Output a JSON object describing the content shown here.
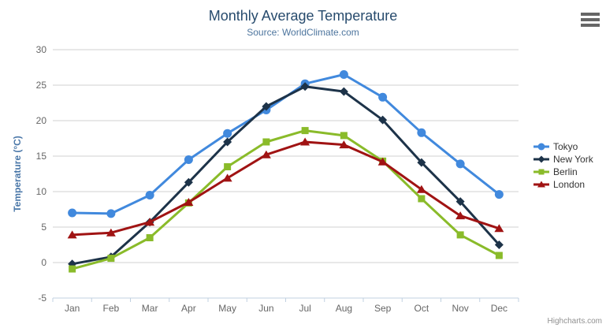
{
  "header": {
    "title": "Monthly Average Temperature",
    "subtitle": "Source: WorldClimate.com"
  },
  "context_menu": {
    "icon": "hamburger-icon"
  },
  "credits": {
    "label": "Highcharts.com"
  },
  "axes": {
    "y_title": "Temperature (°C)",
    "y_ticks": [
      -5,
      0,
      5,
      10,
      15,
      20,
      25,
      30
    ],
    "x_categories": [
      "Jan",
      "Feb",
      "Mar",
      "Apr",
      "May",
      "Jun",
      "Jul",
      "Aug",
      "Sep",
      "Oct",
      "Nov",
      "Dec"
    ]
  },
  "colors": {
    "title": "#274b6d",
    "subtitle": "#4d759e",
    "axis_title": "#4a77a8",
    "tick_label": "#666666",
    "grid": "#d0d0d0",
    "axis_line": "#c0d0e0",
    "legend_text": "#333333",
    "credits": "#909090",
    "background": "#ffffff"
  },
  "chart_data": {
    "type": "line",
    "title": "Monthly Average Temperature",
    "subtitle": "Source: WorldClimate.com",
    "categories": [
      "Jan",
      "Feb",
      "Mar",
      "Apr",
      "May",
      "Jun",
      "Jul",
      "Aug",
      "Sep",
      "Oct",
      "Nov",
      "Dec"
    ],
    "series": [
      {
        "name": "Tokyo",
        "color": "#4189dd",
        "marker": "circle",
        "values": [
          7.0,
          6.9,
          9.5,
          14.5,
          18.2,
          21.5,
          25.2,
          26.5,
          23.3,
          18.3,
          13.9,
          9.6
        ]
      },
      {
        "name": "New York",
        "color": "#1d3349",
        "marker": "diamond",
        "values": [
          -0.2,
          0.8,
          5.7,
          11.3,
          17.0,
          22.0,
          24.8,
          24.1,
          20.1,
          14.1,
          8.6,
          2.5
        ]
      },
      {
        "name": "Berlin",
        "color": "#8abb2a",
        "marker": "square",
        "values": [
          -0.9,
          0.6,
          3.5,
          8.4,
          13.5,
          17.0,
          18.6,
          17.9,
          14.3,
          9.0,
          3.9,
          1.0
        ]
      },
      {
        "name": "London",
        "color": "#a01313",
        "marker": "triangle",
        "values": [
          3.9,
          4.2,
          5.7,
          8.5,
          11.9,
          15.2,
          17.0,
          16.6,
          14.2,
          10.3,
          6.6,
          4.8
        ]
      }
    ],
    "xlabel": "",
    "ylabel": "Temperature (°C)",
    "ylim": [
      -5,
      30
    ],
    "ytick_step": 5,
    "grid": true,
    "legend_position": "right"
  }
}
